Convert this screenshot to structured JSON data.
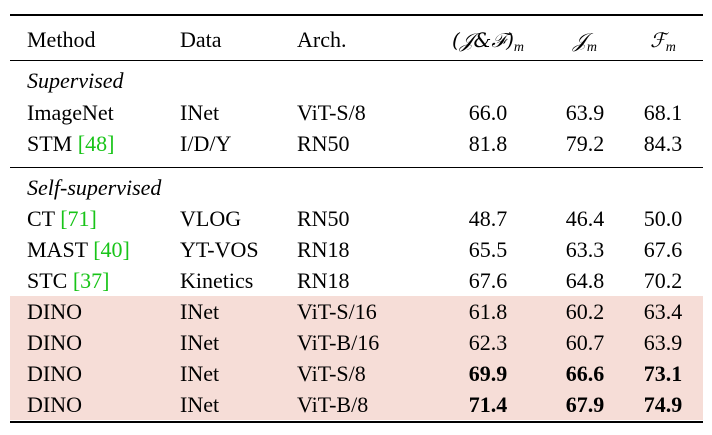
{
  "header": {
    "method": "Method",
    "data": "Data",
    "arch": "Arch.",
    "jf": "(𝒥&ℱ)",
    "jf_sub": "m",
    "jm": "𝒥",
    "jm_sub": "m",
    "fm": "ℱ",
    "fm_sub": "m"
  },
  "sections": {
    "supervised": "Supervised",
    "self_supervised": "Self-supervised"
  },
  "supervised_rows": [
    {
      "method": "ImageNet",
      "ref": "",
      "data": "INet",
      "arch": "ViT-S/8",
      "jf": "66.0",
      "jm": "63.9",
      "fm": "68.1"
    },
    {
      "method": "STM ",
      "ref": "[48]",
      "data": "I/D/Y",
      "arch": "RN50",
      "jf": "81.8",
      "jm": "79.2",
      "fm": "84.3"
    }
  ],
  "self_rows": [
    {
      "method": "CT ",
      "ref": "[71]",
      "data": "VLOG",
      "arch": "RN50",
      "jf": "48.7",
      "jm": "46.4",
      "fm": "50.0"
    },
    {
      "method": "MAST ",
      "ref": "[40]",
      "data": "YT-VOS",
      "arch": "RN18",
      "jf": "65.5",
      "jm": "63.3",
      "fm": "67.6"
    },
    {
      "method": "STC ",
      "ref": "[37]",
      "data": "Kinetics",
      "arch": "RN18",
      "jf": "67.6",
      "jm": "64.8",
      "fm": "70.2"
    },
    {
      "method": "DINO",
      "ref": "",
      "data": "INet",
      "arch": "ViT-S/16",
      "jf": "61.8",
      "jm": "60.2",
      "fm": "63.4"
    },
    {
      "method": "DINO",
      "ref": "",
      "data": "INet",
      "arch": "ViT-B/16",
      "jf": "62.3",
      "jm": "60.7",
      "fm": "63.9"
    },
    {
      "method": "DINO",
      "ref": "",
      "data": "INet",
      "arch": "ViT-S/8",
      "jf": "69.9",
      "jm": "66.6",
      "fm": "73.1"
    },
    {
      "method": "DINO",
      "ref": "",
      "data": "INet",
      "arch": "ViT-B/8",
      "jf": "71.4",
      "jm": "67.9",
      "fm": "74.9"
    }
  ],
  "colors": {
    "highlight": "#f6ddd7",
    "reference": "#18c418"
  }
}
